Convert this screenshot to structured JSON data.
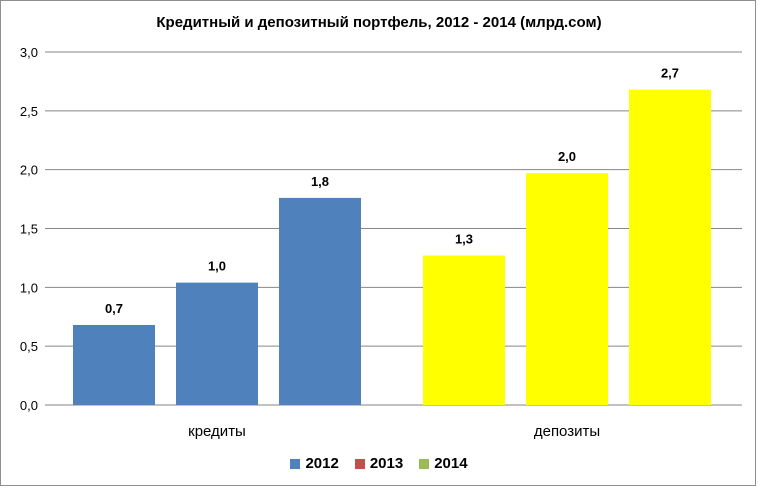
{
  "chart_data": {
    "type": "bar",
    "title": "Кредитный и депозитный портфель, 2012 - 2014 (млрд.сом)",
    "categories": [
      "кредиты",
      "депозиты"
    ],
    "ylim": [
      0,
      3.0
    ],
    "yticks": [
      "0,0",
      "0,5",
      "1,0",
      "1,5",
      "2,0",
      "2,5",
      "3,0"
    ],
    "ytick_values": [
      0,
      0.5,
      1.0,
      1.5,
      2.0,
      2.5,
      3.0
    ],
    "grid": true,
    "legend": "bottom",
    "bars": [
      {
        "category": 0,
        "value": 0.68,
        "label": "0,7",
        "color": "#4f81bd"
      },
      {
        "category": 0,
        "value": 1.04,
        "label": "1,0",
        "color": "#4f81bd"
      },
      {
        "category": 0,
        "value": 1.76,
        "label": "1,8",
        "color": "#4f81bd"
      },
      {
        "category": 1,
        "value": 1.27,
        "label": "1,3",
        "color": "#ffff00"
      },
      {
        "category": 1,
        "value": 1.97,
        "label": "2,0",
        "color": "#ffff00"
      },
      {
        "category": 1,
        "value": 2.68,
        "label": "2,7",
        "color": "#ffff00"
      }
    ],
    "legend_entries": [
      {
        "name": "2012",
        "color": "#4f81bd"
      },
      {
        "name": "2013",
        "color": "#c0504d"
      },
      {
        "name": "2014",
        "color": "#9bbb59"
      }
    ]
  }
}
